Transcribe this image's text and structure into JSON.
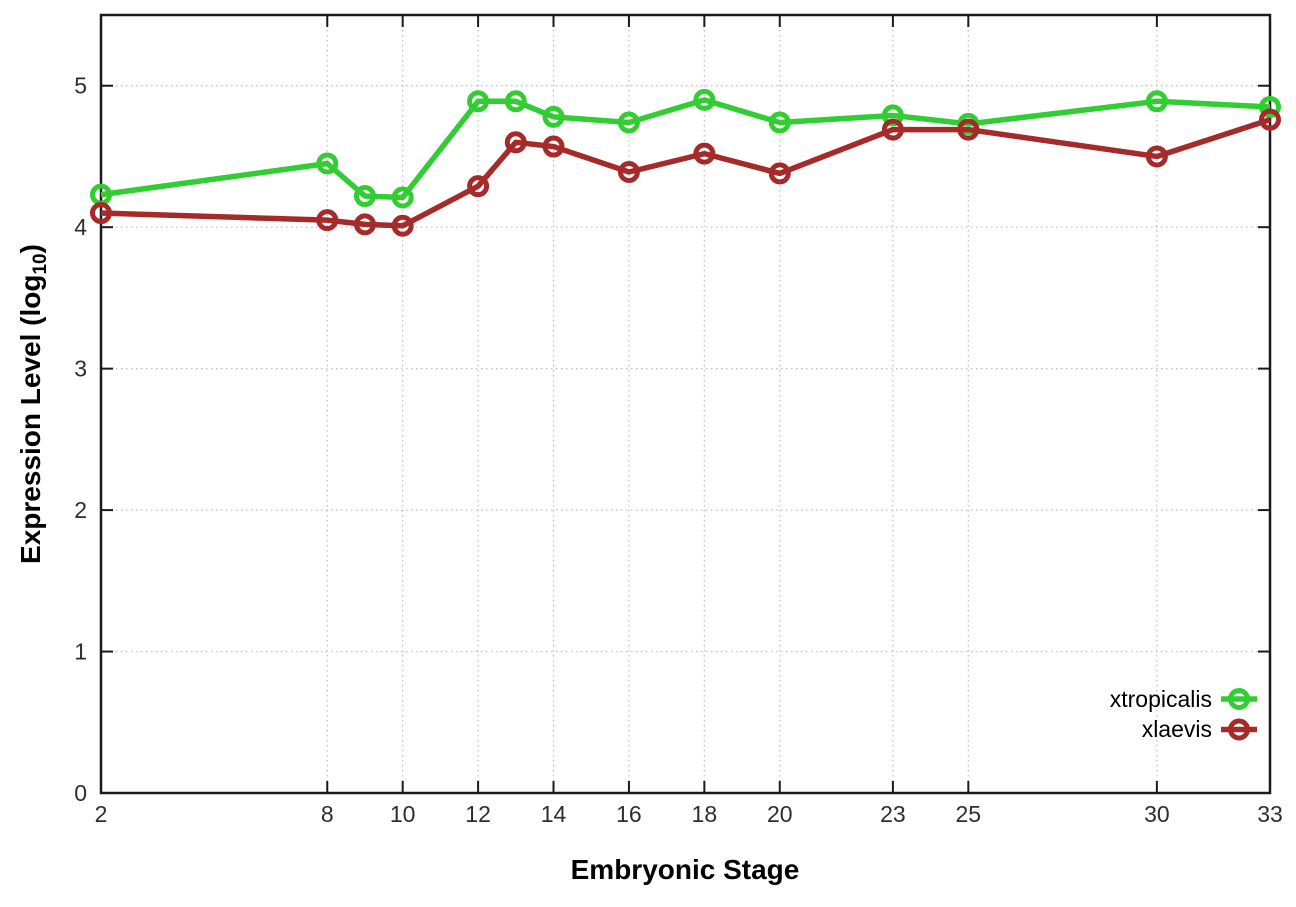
{
  "chart_data": {
    "type": "line",
    "title": "",
    "xlabel": "Embryonic Stage",
    "ylabel": "Expression Level (log10)",
    "ylabel_parts": {
      "pre": "Expression Level (log",
      "sub": "10",
      "post": ")"
    },
    "x": [
      2,
      8,
      9,
      10,
      12,
      13,
      14,
      16,
      18,
      20,
      23,
      25,
      30,
      33
    ],
    "x_ticks": [
      2,
      8,
      10,
      12,
      14,
      16,
      18,
      20,
      23,
      25,
      30,
      33
    ],
    "x_tick_labels": [
      "2",
      "8",
      "10",
      "12",
      "14",
      "16",
      "18",
      "20",
      "23",
      "25",
      "30",
      "33"
    ],
    "y_ticks": [
      0,
      1,
      2,
      3,
      4,
      5
    ],
    "y_tick_labels": [
      "0",
      "1",
      "2",
      "3",
      "4",
      "5"
    ],
    "xlim": [
      2,
      33
    ],
    "ylim": [
      0,
      5.5
    ],
    "grid": true,
    "marker": "open-circle",
    "legend_position": "inside-bottom-right",
    "series": [
      {
        "name": "xtropicalis",
        "color": "#32cd32",
        "values": [
          4.23,
          4.45,
          4.22,
          4.21,
          4.89,
          4.89,
          4.78,
          4.74,
          4.9,
          4.74,
          4.79,
          4.73,
          4.89,
          4.85
        ]
      },
      {
        "name": "xlaevis",
        "color": "#a52a2a",
        "values": [
          4.1,
          4.05,
          4.02,
          4.01,
          4.29,
          4.6,
          4.57,
          4.39,
          4.52,
          4.38,
          4.69,
          4.69,
          4.5,
          4.76
        ]
      }
    ]
  }
}
